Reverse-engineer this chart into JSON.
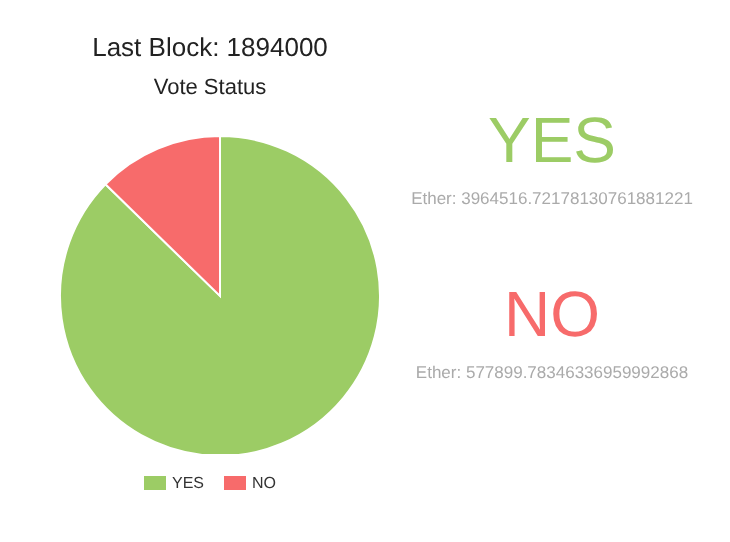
{
  "chart_data": {
    "type": "pie",
    "title": "Vote Status",
    "categories": [
      "YES",
      "NO"
    ],
    "values": [
      87.3,
      12.7
    ],
    "colors": [
      "#9ccc65",
      "#f76b6b"
    ],
    "legend": "bottom",
    "annotations": [
      "Last Block: 1894000",
      "YES",
      "Ether: 3964516.72178130761881221",
      "NO",
      "Ether: 577899.78346336959992868"
    ]
  }
}
